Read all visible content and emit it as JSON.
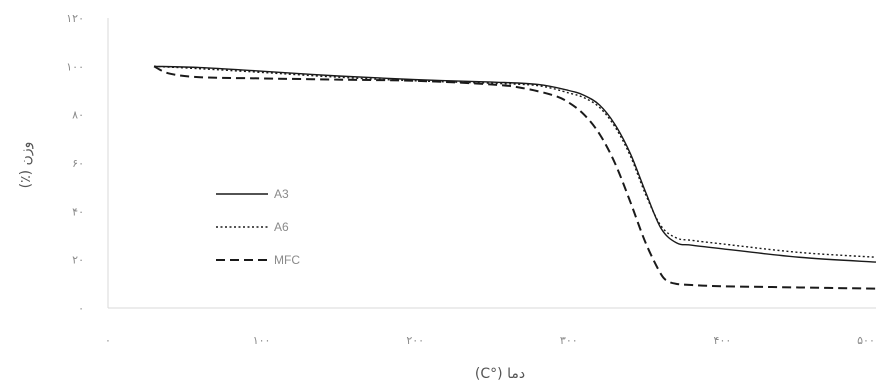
{
  "chart_data": {
    "type": "line",
    "xlabel": "دما (°C)",
    "ylabel": "وزن (٪)",
    "xlim": [
      0,
      500
    ],
    "ylim": [
      0,
      120
    ],
    "xticks": [
      0,
      100,
      200,
      300,
      400,
      500
    ],
    "yticks": [
      0,
      20,
      40,
      60,
      80,
      100,
      120
    ],
    "xtick_labels": [
      "۰",
      "۱۰۰",
      "۲۰۰",
      "۳۰۰",
      "۴۰۰",
      "۵۰۰"
    ],
    "ytick_labels": [
      "۰",
      "۲۰",
      "۴۰",
      "۶۰",
      "۸۰",
      "۱۰۰",
      "۱۲۰"
    ],
    "grid": false,
    "legend_position": "middle-left",
    "series": [
      {
        "name": "A3",
        "style": "solid",
        "color": "#1a1a1a",
        "x": [
          30,
          60,
          100,
          150,
          200,
          250,
          280,
          300,
          310,
          320,
          330,
          340,
          350,
          360,
          370,
          380,
          400,
          450,
          500
        ],
        "y": [
          100,
          99.5,
          98,
          96,
          94.5,
          93.5,
          92.5,
          90,
          88,
          84,
          76,
          64,
          48,
          33,
          27,
          26,
          24.5,
          21,
          19
        ]
      },
      {
        "name": "A6",
        "style": "dotted",
        "color": "#1a1a1a",
        "x": [
          30,
          60,
          100,
          150,
          200,
          250,
          280,
          300,
          310,
          320,
          330,
          340,
          350,
          360,
          370,
          380,
          400,
          450,
          500
        ],
        "y": [
          100,
          99,
          97.5,
          95.5,
          94,
          93,
          92,
          89,
          87,
          83,
          75,
          63,
          47,
          34,
          29,
          28,
          26.5,
          23,
          21
        ]
      },
      {
        "name": "MFC",
        "style": "dashed",
        "color": "#1a1a1a",
        "x": [
          30,
          40,
          60,
          100,
          150,
          200,
          250,
          270,
          290,
          300,
          310,
          320,
          330,
          340,
          350,
          360,
          365,
          370,
          380,
          400,
          450,
          500
        ],
        "y": [
          100,
          97,
          95.5,
          95,
          94.5,
          94,
          92.5,
          91,
          88,
          85,
          80,
          72,
          60,
          44,
          27,
          14,
          11,
          10,
          9.5,
          9,
          8.5,
          8
        ]
      }
    ]
  }
}
